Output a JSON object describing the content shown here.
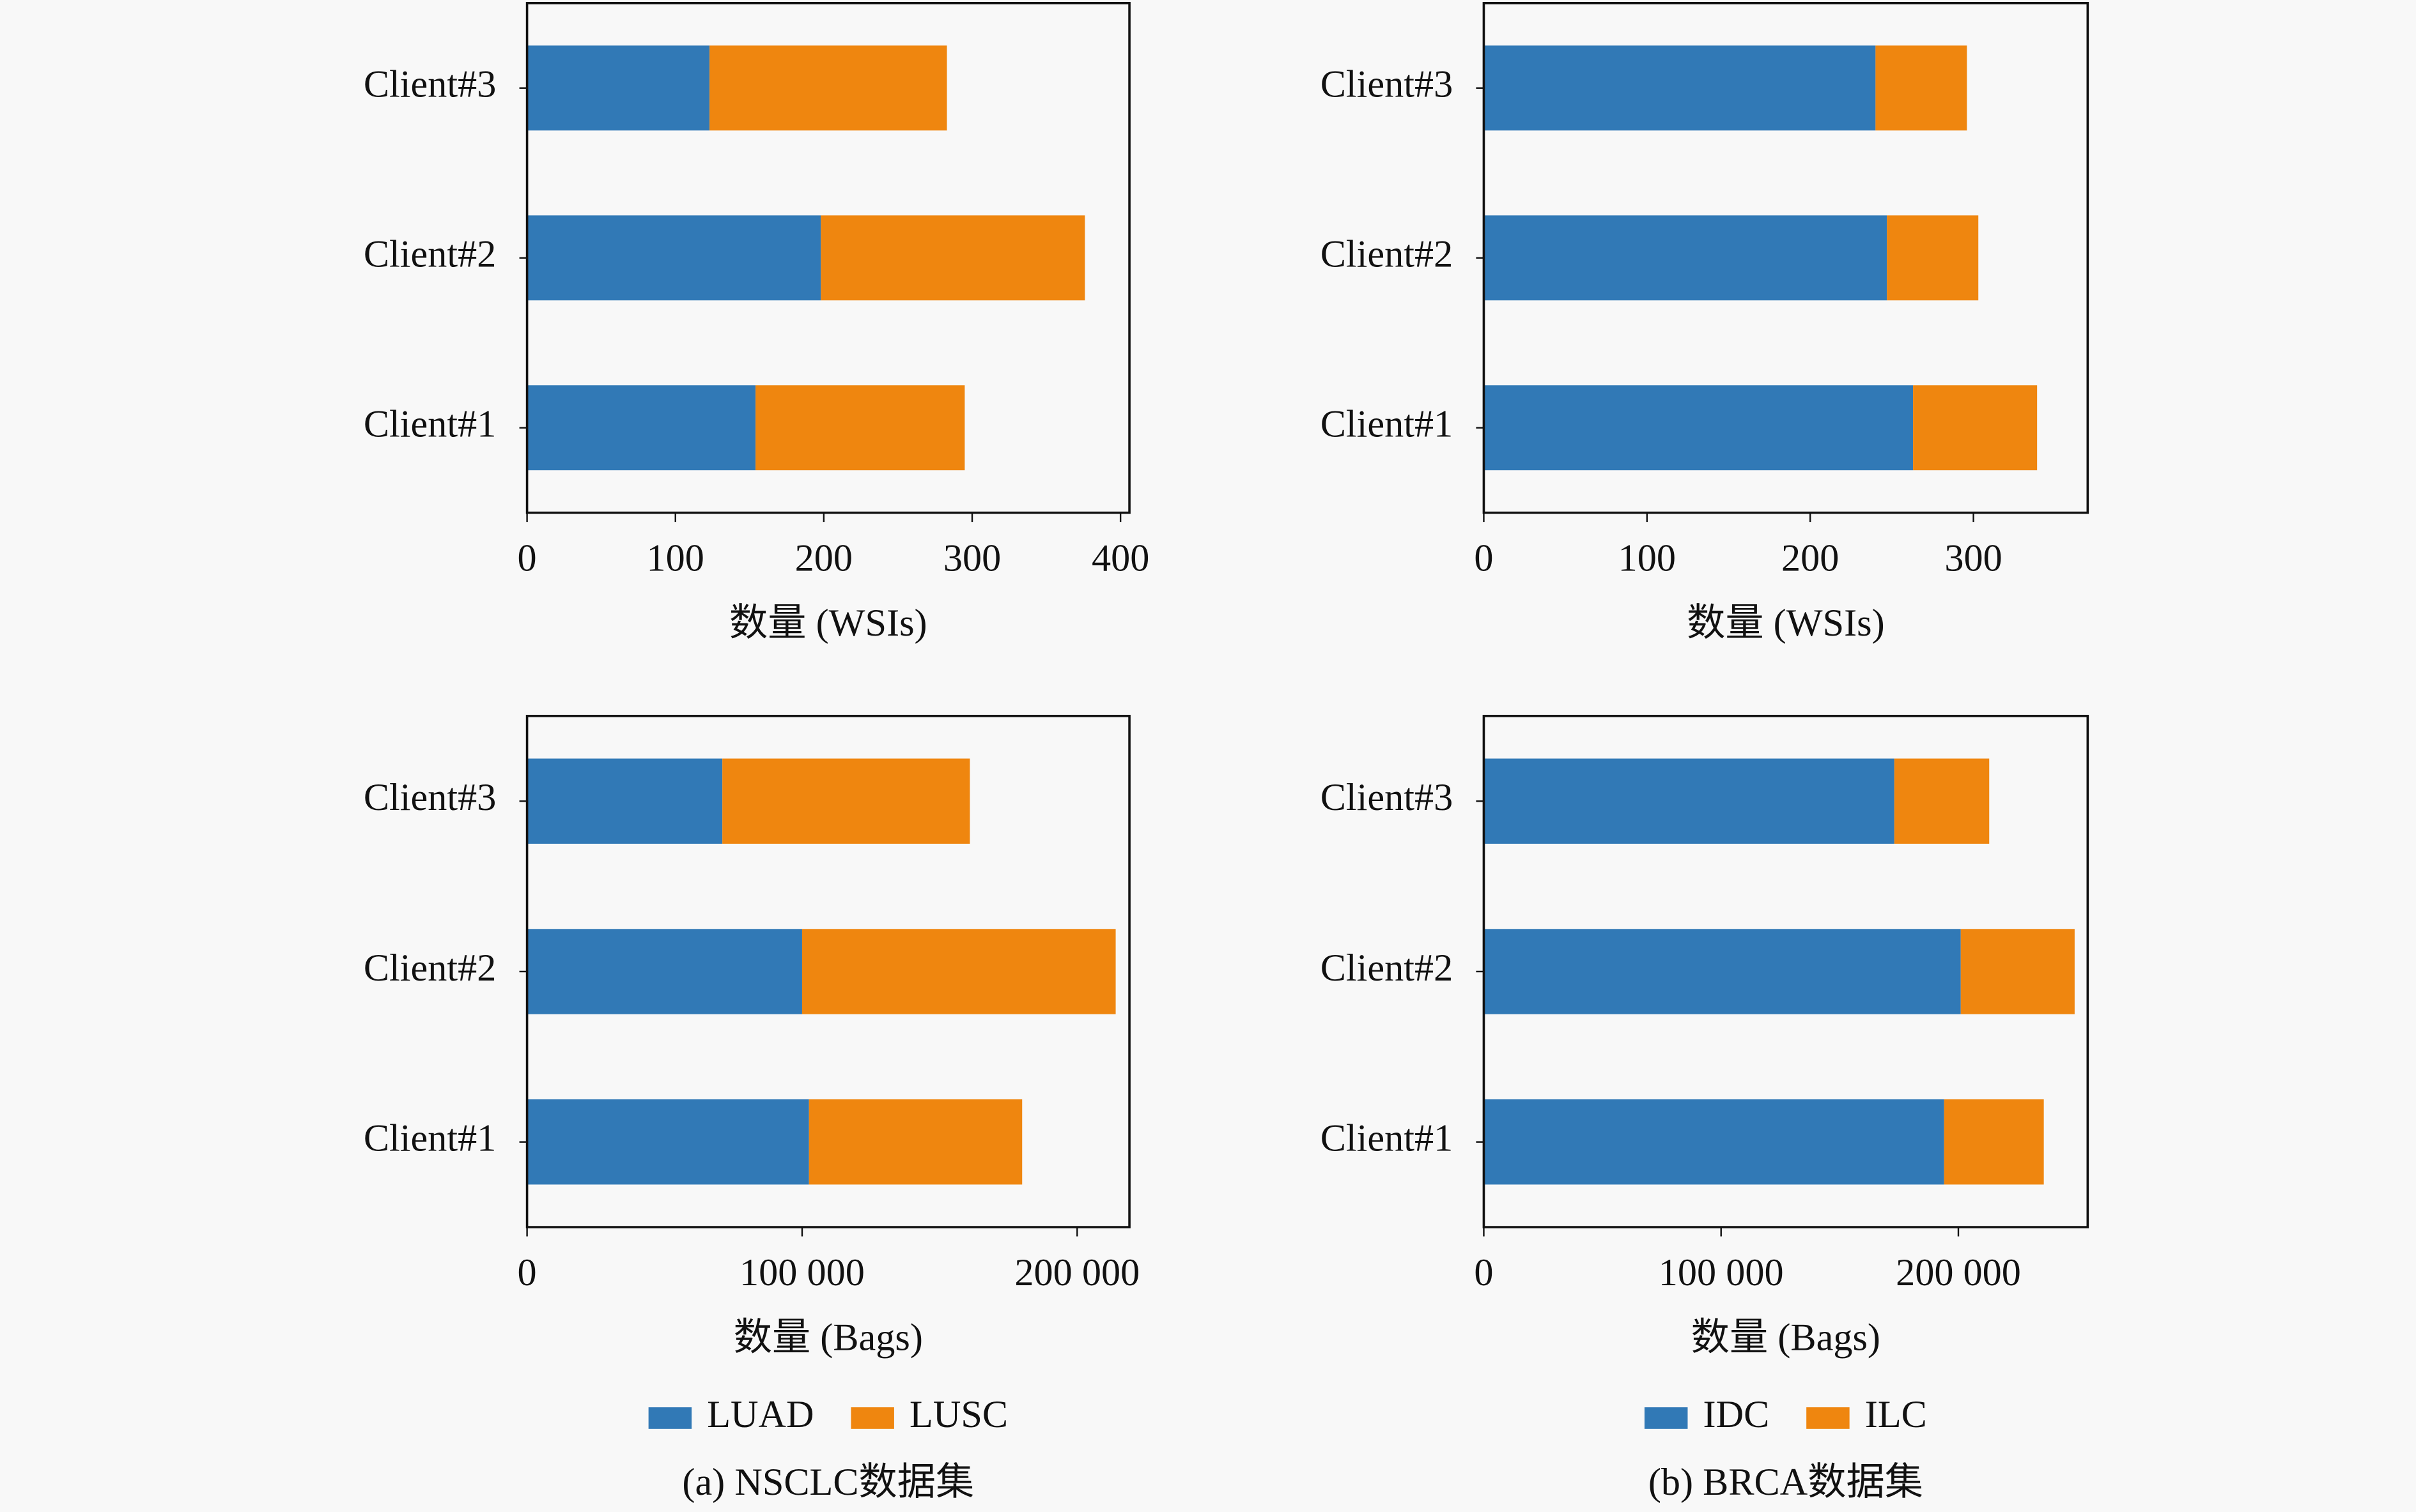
{
  "chart_data": [
    {
      "type": "barh_stacked",
      "xlabel": "数量 (WSIs)",
      "categories": [
        "Client#1",
        "Client#2",
        "Client#3"
      ],
      "series": [
        {
          "color": "#3179b6",
          "values": [
            154,
            198,
            123
          ]
        },
        {
          "color": "#ef860f",
          "values": [
            141,
            178,
            160
          ]
        }
      ],
      "xlim": [
        0,
        406
      ],
      "xticks": [
        0,
        100,
        200,
        300,
        400
      ]
    },
    {
      "type": "barh_stacked",
      "xlabel": "数量 (WSIs)",
      "categories": [
        "Client#1",
        "Client#2",
        "Client#3"
      ],
      "series": [
        {
          "color": "#3179b6",
          "values": [
            263,
            247,
            240
          ]
        },
        {
          "color": "#ef860f",
          "values": [
            76,
            56,
            56
          ]
        }
      ],
      "xlim": [
        0,
        370
      ],
      "xticks": [
        0,
        100,
        200,
        300
      ]
    },
    {
      "type": "barh_stacked",
      "xlabel": "数量 (Bags)",
      "categories": [
        "Client#1",
        "Client#2",
        "Client#3"
      ],
      "series": [
        {
          "name": "LUAD",
          "color": "#3179b6",
          "values": [
            102500,
            100000,
            71000
          ]
        },
        {
          "name": "LUSC",
          "color": "#ef860f",
          "values": [
            77500,
            114000,
            90000
          ]
        }
      ],
      "xlim": [
        0,
        219000
      ],
      "xticks": [
        0,
        {
          "value": 100000,
          "label": "100 000"
        },
        {
          "value": 200000,
          "label": "200 000"
        }
      ],
      "legend": "bottom",
      "caption": "(a) NSCLC数据集"
    },
    {
      "type": "barh_stacked",
      "xlabel": "数量 (Bags)",
      "categories": [
        "Client#1",
        "Client#2",
        "Client#3"
      ],
      "series": [
        {
          "name": "IDC",
          "color": "#3179b6",
          "values": [
            194000,
            201000,
            173000
          ]
        },
        {
          "name": "ILC",
          "color": "#ef860f",
          "values": [
            42000,
            48000,
            40000
          ]
        }
      ],
      "xlim": [
        0,
        254500
      ],
      "xticks": [
        0,
        {
          "value": 100000,
          "label": "100 000"
        },
        {
          "value": 200000,
          "label": "200 000"
        }
      ],
      "legend": "bottom",
      "caption": "(b) BRCA数据集"
    }
  ]
}
